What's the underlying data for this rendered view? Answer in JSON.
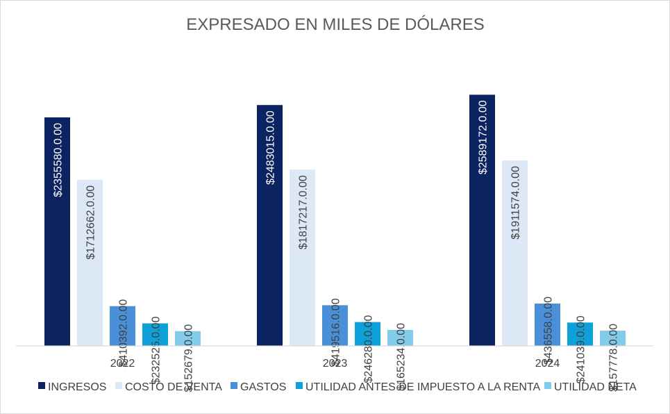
{
  "chart_data": {
    "type": "bar",
    "title": "EXPRESADO EN MILES DE DÓLARES",
    "xlabel": "",
    "ylabel": "",
    "ylim": [
      0,
      2700000
    ],
    "grid": false,
    "legend_position": "bottom",
    "categories": [
      "2022",
      "2023",
      "2024"
    ],
    "series": [
      {
        "name": "INGRESOS",
        "color": "#0b2360",
        "values": [
          2355580,
          2483015,
          2589172
        ],
        "labels": [
          "$2355580.0.00",
          "$2483015.0.00",
          "$2589172.0.00"
        ]
      },
      {
        "name": "COSTO DE VENTA",
        "color": "#dce8f6",
        "values": [
          1712662,
          1817217,
          1911574
        ],
        "labels": [
          "$1712662.0.00",
          "$1817217.0.00",
          "$1911574.0.00"
        ]
      },
      {
        "name": "GASTOS",
        "color": "#4a90d9",
        "values": [
          410392,
          419516,
          436558
        ],
        "labels": [
          "$410392.0.00",
          "$419516.0.00",
          "$436558.0.00"
        ]
      },
      {
        "name": "UTILIDAD ANTES DE IMPUESTO A LA RENTA",
        "color": "#0ea0d8",
        "values": [
          232525,
          246280,
          241039
        ],
        "labels": [
          "$232525.0.00",
          "$246280.0.00",
          "$241039.0.00"
        ]
      },
      {
        "name": "UTILIDAD NETA",
        "color": "#83cbeb",
        "values": [
          152679,
          165234,
          157778
        ],
        "labels": [
          "$152679.0.00",
          "$165234.0.00",
          "$157778.0.00"
        ]
      }
    ]
  }
}
